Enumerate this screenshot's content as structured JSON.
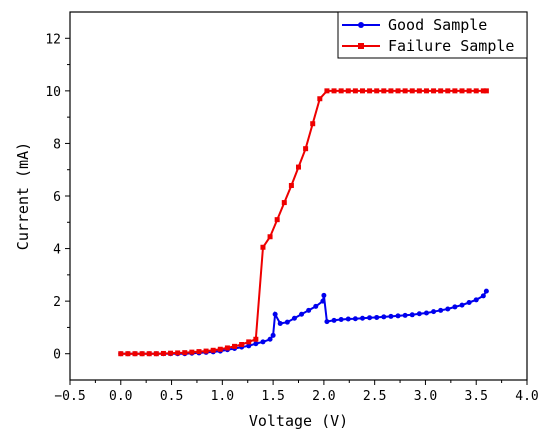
{
  "chart_data": {
    "type": "line",
    "xlabel": "Voltage (V)",
    "ylabel": "Current (mA)",
    "xlim": [
      -0.5,
      4.0
    ],
    "ylim": [
      -1,
      13
    ],
    "x_ticks": [
      -0.5,
      0.0,
      0.5,
      1.0,
      1.5,
      2.0,
      2.5,
      3.0,
      3.5,
      4.0
    ],
    "x_tick_labels": [
      "−0.5",
      "0.0",
      "0.5",
      "1.0",
      "1.5",
      "2.0",
      "2.5",
      "3.0",
      "3.5",
      "4.0"
    ],
    "y_ticks": [
      0,
      2,
      4,
      6,
      8,
      10,
      12
    ],
    "y_tick_labels": [
      "0",
      "2",
      "4",
      "6",
      "8",
      "10",
      "12"
    ],
    "grid": false,
    "legend_position": "top-right",
    "series": [
      {
        "name": "Good Sample",
        "color": "#0000ee",
        "marker": "circle",
        "x": [
          0.0,
          0.07,
          0.14,
          0.21,
          0.28,
          0.35,
          0.42,
          0.49,
          0.56,
          0.63,
          0.7,
          0.77,
          0.84,
          0.91,
          0.98,
          1.05,
          1.12,
          1.19,
          1.26,
          1.33,
          1.4,
          1.47,
          1.5,
          1.52,
          1.57,
          1.64,
          1.71,
          1.78,
          1.85,
          1.92,
          1.99,
          2.0,
          2.03,
          2.1,
          2.17,
          2.24,
          2.31,
          2.38,
          2.45,
          2.52,
          2.59,
          2.66,
          2.73,
          2.8,
          2.87,
          2.94,
          3.01,
          3.08,
          3.15,
          3.22,
          3.29,
          3.36,
          3.43,
          3.5,
          3.57,
          3.6
        ],
        "y": [
          0.0,
          0.0,
          0.0,
          0.0,
          0.0,
          0.0,
          0.0,
          0.0,
          0.0,
          0.0,
          0.02,
          0.03,
          0.05,
          0.07,
          0.1,
          0.15,
          0.2,
          0.25,
          0.3,
          0.38,
          0.45,
          0.55,
          0.7,
          1.5,
          1.15,
          1.2,
          1.35,
          1.5,
          1.65,
          1.8,
          2.0,
          2.22,
          1.22,
          1.27,
          1.3,
          1.32,
          1.33,
          1.35,
          1.37,
          1.38,
          1.4,
          1.42,
          1.44,
          1.46,
          1.48,
          1.52,
          1.55,
          1.6,
          1.65,
          1.7,
          1.78,
          1.85,
          1.95,
          2.05,
          2.2,
          2.38
        ]
      },
      {
        "name": "Failure Sample",
        "color": "#ee0000",
        "marker": "square",
        "x": [
          0.0,
          0.07,
          0.14,
          0.21,
          0.28,
          0.35,
          0.42,
          0.49,
          0.56,
          0.63,
          0.7,
          0.77,
          0.84,
          0.91,
          0.98,
          1.05,
          1.12,
          1.19,
          1.26,
          1.33,
          1.4,
          1.47,
          1.54,
          1.61,
          1.68,
          1.75,
          1.82,
          1.89,
          1.96,
          2.03,
          2.1,
          2.17,
          2.24,
          2.31,
          2.38,
          2.45,
          2.52,
          2.59,
          2.66,
          2.73,
          2.8,
          2.87,
          2.94,
          3.01,
          3.08,
          3.15,
          3.22,
          3.29,
          3.36,
          3.43,
          3.5,
          3.57,
          3.6
        ],
        "y": [
          0.0,
          0.0,
          0.0,
          0.0,
          0.0,
          0.0,
          0.01,
          0.02,
          0.03,
          0.04,
          0.06,
          0.08,
          0.1,
          0.13,
          0.17,
          0.22,
          0.28,
          0.35,
          0.45,
          0.55,
          4.05,
          4.45,
          5.1,
          5.75,
          6.4,
          7.1,
          7.8,
          8.75,
          9.7,
          10.0,
          10.0,
          10.0,
          10.0,
          10.0,
          10.0,
          10.0,
          10.0,
          10.0,
          10.0,
          10.0,
          10.0,
          10.0,
          10.0,
          10.0,
          10.0,
          10.0,
          10.0,
          10.0,
          10.0,
          10.0,
          10.0,
          10.0,
          10.0
        ]
      }
    ]
  }
}
